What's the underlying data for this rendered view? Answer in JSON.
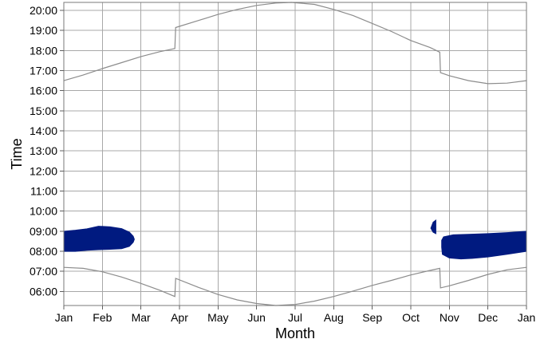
{
  "chart_data": {
    "type": "area",
    "xlabel": "Month",
    "ylabel": "Time",
    "x_unit": "month",
    "x_range": [
      0,
      12
    ],
    "x_ticks": [
      {
        "value": 0,
        "label": "Jan"
      },
      {
        "value": 1,
        "label": "Feb"
      },
      {
        "value": 2,
        "label": "Mar"
      },
      {
        "value": 3,
        "label": "Apr"
      },
      {
        "value": 4,
        "label": "May"
      },
      {
        "value": 5,
        "label": "Jun"
      },
      {
        "value": 6,
        "label": "Jul"
      },
      {
        "value": 7,
        "label": "Aug"
      },
      {
        "value": 8,
        "label": "Sep"
      },
      {
        "value": 9,
        "label": "Oct"
      },
      {
        "value": 10,
        "label": "Nov"
      },
      {
        "value": 11,
        "label": "Dec"
      },
      {
        "value": 12,
        "label": "Jan"
      }
    ],
    "y_unit": "hour of day",
    "y_range": [
      5.3,
      20.4
    ],
    "y_ticks": [
      {
        "value": 6,
        "label": "06:00"
      },
      {
        "value": 7,
        "label": "07:00"
      },
      {
        "value": 8,
        "label": "08:00"
      },
      {
        "value": 9,
        "label": "09:00"
      },
      {
        "value": 10,
        "label": "10:00"
      },
      {
        "value": 11,
        "label": "11:00"
      },
      {
        "value": 12,
        "label": "12:00"
      },
      {
        "value": 13,
        "label": "13:00"
      },
      {
        "value": 14,
        "label": "14:00"
      },
      {
        "value": 15,
        "label": "15:00"
      },
      {
        "value": 16,
        "label": "16:00"
      },
      {
        "value": 17,
        "label": "17:00"
      },
      {
        "value": 18,
        "label": "18:00"
      },
      {
        "value": 19,
        "label": "19:00"
      },
      {
        "value": 20,
        "label": "20:00"
      }
    ],
    "grid": true,
    "lines": [
      {
        "color": "#8c8c8c",
        "points": [
          [
            0,
            16.5
          ],
          [
            0.5,
            16.78
          ],
          [
            1,
            17.1
          ],
          [
            1.5,
            17.4
          ],
          [
            2,
            17.7
          ],
          [
            2.5,
            17.95
          ],
          [
            2.88,
            18.1
          ],
          [
            2.9,
            19.15
          ],
          [
            3.5,
            19.5
          ],
          [
            4,
            19.8
          ],
          [
            4.5,
            20.05
          ],
          [
            5,
            20.25
          ],
          [
            5.5,
            20.37
          ],
          [
            5.9,
            20.4
          ],
          [
            6.5,
            20.3
          ],
          [
            7,
            20.05
          ],
          [
            7.5,
            19.75
          ],
          [
            8,
            19.35
          ],
          [
            8.5,
            18.95
          ],
          [
            9,
            18.5
          ],
          [
            9.5,
            18.15
          ],
          [
            9.75,
            17.92
          ],
          [
            9.77,
            16.9
          ],
          [
            10,
            16.75
          ],
          [
            10.5,
            16.5
          ],
          [
            11,
            16.35
          ],
          [
            11.5,
            16.38
          ],
          [
            12,
            16.5
          ]
        ]
      },
      {
        "color": "#8c8c8c",
        "points": [
          [
            0,
            7.2
          ],
          [
            0.5,
            7.15
          ],
          [
            1,
            6.98
          ],
          [
            1.5,
            6.72
          ],
          [
            2,
            6.4
          ],
          [
            2.5,
            6.05
          ],
          [
            2.88,
            5.75
          ],
          [
            2.9,
            6.65
          ],
          [
            3.5,
            6.2
          ],
          [
            4,
            5.85
          ],
          [
            4.5,
            5.58
          ],
          [
            5,
            5.4
          ],
          [
            5.5,
            5.3
          ],
          [
            6,
            5.35
          ],
          [
            6.5,
            5.52
          ],
          [
            7,
            5.75
          ],
          [
            7.5,
            6.02
          ],
          [
            8,
            6.3
          ],
          [
            8.5,
            6.55
          ],
          [
            9,
            6.82
          ],
          [
            9.5,
            7.05
          ],
          [
            9.75,
            7.15
          ],
          [
            9.77,
            6.18
          ],
          [
            10,
            6.28
          ],
          [
            10.5,
            6.55
          ],
          [
            11,
            6.85
          ],
          [
            11.5,
            7.08
          ],
          [
            12,
            7.2
          ]
        ]
      }
    ],
    "regions": [
      {
        "color": "#001a80",
        "points": [
          [
            0,
            8.0
          ],
          [
            0.3,
            8.0
          ],
          [
            0.6,
            8.05
          ],
          [
            0.9,
            8.08
          ],
          [
            1.2,
            8.1
          ],
          [
            1.5,
            8.13
          ],
          [
            1.7,
            8.25
          ],
          [
            1.8,
            8.45
          ],
          [
            1.83,
            8.6
          ],
          [
            1.8,
            8.75
          ],
          [
            1.7,
            8.95
          ],
          [
            1.5,
            9.13
          ],
          [
            1.2,
            9.22
          ],
          [
            0.9,
            9.25
          ],
          [
            0.6,
            9.12
          ],
          [
            0.3,
            9.05
          ],
          [
            0,
            9.0
          ]
        ]
      },
      {
        "color": "#001a80",
        "points": [
          [
            9.65,
            9.55
          ],
          [
            9.58,
            9.45
          ],
          [
            9.52,
            9.15
          ],
          [
            9.58,
            8.95
          ],
          [
            9.65,
            8.88
          ],
          [
            9.65,
            9.55
          ]
        ]
      },
      {
        "color": "#001a80",
        "points": [
          [
            9.8,
            8.2
          ],
          [
            9.82,
            7.85
          ],
          [
            10,
            7.67
          ],
          [
            10.3,
            7.62
          ],
          [
            10.6,
            7.65
          ],
          [
            11,
            7.72
          ],
          [
            11.5,
            7.85
          ],
          [
            12,
            8.0
          ],
          [
            12,
            9.0
          ],
          [
            11.5,
            8.93
          ],
          [
            11,
            8.88
          ],
          [
            10.5,
            8.85
          ],
          [
            10.1,
            8.82
          ],
          [
            9.85,
            8.72
          ],
          [
            9.8,
            8.55
          ]
        ]
      }
    ]
  }
}
